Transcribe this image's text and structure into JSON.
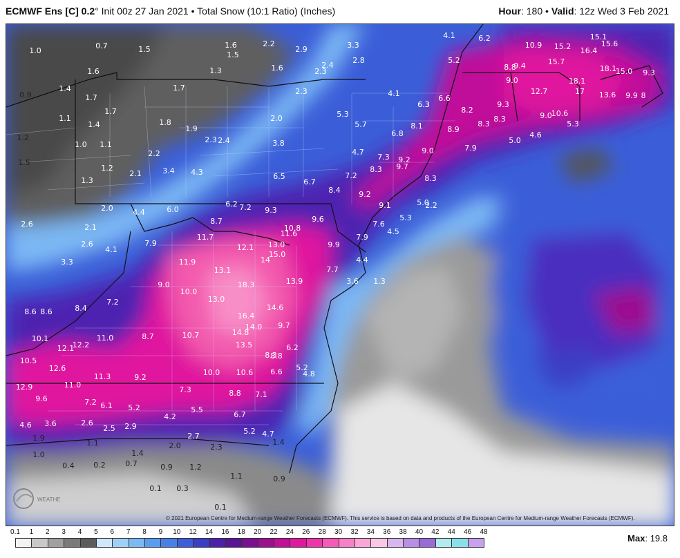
{
  "header": {
    "model": "ECMWF Ens [C] 0.2",
    "degree": "°",
    "init": "Init 00z 27 Jan 2021",
    "bullet": "•",
    "product": "Total Snow (10:1 Ratio) (Inches)",
    "hour_label": "Hour",
    "hour_value": ": 180",
    "valid_label": "Valid",
    "valid_value": ": 12z Wed 3 Feb 2021"
  },
  "footer": {
    "copyright": "© 2021 European Centre for Medium-range Weather Forecasts (ECMWF). This service is based on data and products of the European Centre for Medium-range Weather Forecasts (ECMWF).",
    "max_label": "Max",
    "max_value": ": 19.8",
    "logo_text": "WEATHERBELL"
  },
  "colorbar": {
    "ticks": [
      "0.1",
      "1",
      "2",
      "3",
      "4",
      "5",
      "6",
      "7",
      "8",
      "9",
      "10",
      "12",
      "14",
      "16",
      "18",
      "20",
      "22",
      "24",
      "26",
      "28",
      "30",
      "32",
      "34",
      "36",
      "38",
      "40",
      "42",
      "44",
      "46",
      "48"
    ],
    "colors": [
      "#f2f2f2",
      "#c9c9c9",
      "#a0a0a0",
      "#7a7a7a",
      "#5c5c5c",
      "#cfe6fb",
      "#9fd0f8",
      "#7bb8f4",
      "#5a9cf0",
      "#4a7fe6",
      "#3a5fd8",
      "#3a3fc4",
      "#4a22a8",
      "#5a1596",
      "#7a1090",
      "#9c1090",
      "#c0109a",
      "#e0189f",
      "#f035a8",
      "#f65ab8",
      "#f880c8",
      "#fba6d6",
      "#fcc7e5",
      "#d8b6f0",
      "#b88fe4",
      "#9a6bd7",
      "#b2eaf0",
      "#8ae0ea",
      "#c8a0ee",
      "#d6a8f4"
    ],
    "colors_note": ""
  },
  "map_values": [
    "1.0",
    "0.7",
    "1.5",
    "1.6",
    "2.2",
    "2.9",
    "3.3",
    "4.1",
    "6.2",
    "10.9",
    "15.2",
    "16.4",
    "15.1",
    "15.6",
    "1.5",
    "2.8",
    "5.2",
    "6.3",
    "8.8",
    "9.4",
    "15.7",
    "18.1",
    "15.0",
    "9.3",
    "1.6",
    "1.3",
    "1.6",
    "2.3",
    "2.4",
    "1.4",
    "0.9",
    "1.7",
    "1.7",
    "2.3",
    "4.1",
    "6.3",
    "6.6",
    "9.0",
    "12.7",
    "18.1",
    "17",
    "13.6",
    "9.9",
    "8",
    "1.7",
    "1.1",
    "1.4",
    "1.8",
    "1.9",
    "2.0",
    "5.3",
    "5.7",
    "8.1",
    "8.2",
    "9.3",
    "8.9",
    "8.3",
    "8.3",
    "9.0",
    "10.6",
    "5.3",
    "1.2",
    "1.0",
    "1.1",
    "2.3",
    "2.4",
    "3.8",
    "6.8",
    "5.0",
    "4.6",
    "2.2",
    "7.9",
    "9.0",
    "4.7",
    "7.3",
    "9.2",
    "1.5",
    "1.2",
    "2.1",
    "3.4",
    "4.3",
    "8.3",
    "9.7",
    "8.3",
    "1.3",
    "6.5",
    "6.7",
    "7.2",
    "8.4",
    "9.2",
    "8.6",
    "9.1",
    "5.0",
    "2.2",
    "2.0",
    "4.4",
    "6.0",
    "6.2",
    "7.2",
    "9.3",
    "7.6",
    "5.3",
    "2.6",
    "2.1",
    "8.7",
    "10.8",
    "9.6",
    "4.5",
    "11.7",
    "11.6",
    "7.9",
    "2.6",
    "4.1",
    "7.9",
    "12.1",
    "13.0",
    "9.9",
    "3.3",
    "11.9",
    "15.0",
    "14",
    "4.4",
    "13.1",
    "7.7",
    "18.3",
    "3.6",
    "9.0",
    "10.0",
    "13.0",
    "13.9",
    "1.3",
    "8.4",
    "7.2",
    "14.6",
    "8.6",
    "16.4",
    "14.0",
    "9.7",
    "10.1",
    "11.0",
    "8.7",
    "10.7",
    "14.8",
    "12.2",
    "13.5",
    "8.8",
    "10.5",
    "12.1",
    "8.3",
    "6.2",
    "12.6",
    "11.3",
    "10.0",
    "10.6",
    "6.6",
    "5.2",
    "4.8",
    "12.9",
    "11.0",
    "9.2",
    "9.6",
    "7.3",
    "8.8",
    "7.1",
    "7.2",
    "6.1",
    "5.2",
    "5.5",
    "4.2",
    "6.7",
    "4.6",
    "3.6",
    "2.6",
    "2.5",
    "2.9",
    "5.2",
    "4.7",
    "1.9",
    "1.1",
    "2.7",
    "1.0",
    "1.4",
    "2.0",
    "2.3",
    "1.4",
    "0.4",
    "0.2",
    "0.7",
    "0.9",
    "1.2",
    "1.1",
    "0.9",
    "0.1",
    "0.3",
    "0.1"
  ]
}
